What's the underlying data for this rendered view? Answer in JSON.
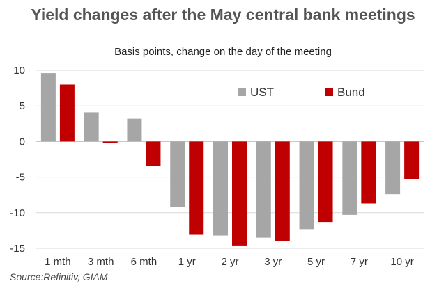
{
  "title": "Yield changes after the May central bank meetings",
  "subtitle": "Basis points, change on the day of the meeting",
  "source": "Source:Refinitiv, GIAM",
  "colors": {
    "UST": "#a6a6a6",
    "Bund": "#c00000",
    "grid": "#d9d9d9",
    "axis": "#bfbfbf"
  },
  "chart_data": {
    "type": "bar",
    "title": "Yield changes after the May central bank meetings",
    "subtitle": "Basis points, change on the day of the meeting",
    "xlabel": "",
    "ylabel": "",
    "categories": [
      "1 mth",
      "3 mth",
      "6 mth",
      "1 yr",
      "2 yr",
      "3 yr",
      "5 yr",
      "7 yr",
      "10 yr"
    ],
    "series": [
      {
        "name": "UST",
        "values": [
          9.6,
          4.1,
          3.2,
          -9.2,
          -13.2,
          -13.5,
          -12.3,
          -10.3,
          -7.4
        ]
      },
      {
        "name": "Bund",
        "values": [
          8.0,
          -0.2,
          -3.4,
          -13.1,
          -14.6,
          -14.0,
          -11.3,
          -8.7,
          -5.3
        ]
      }
    ],
    "ylim": [
      -15,
      10
    ],
    "yticks": [
      10,
      5,
      0,
      -5,
      -10,
      -15
    ],
    "grid": true,
    "legend_position": "top-right"
  }
}
